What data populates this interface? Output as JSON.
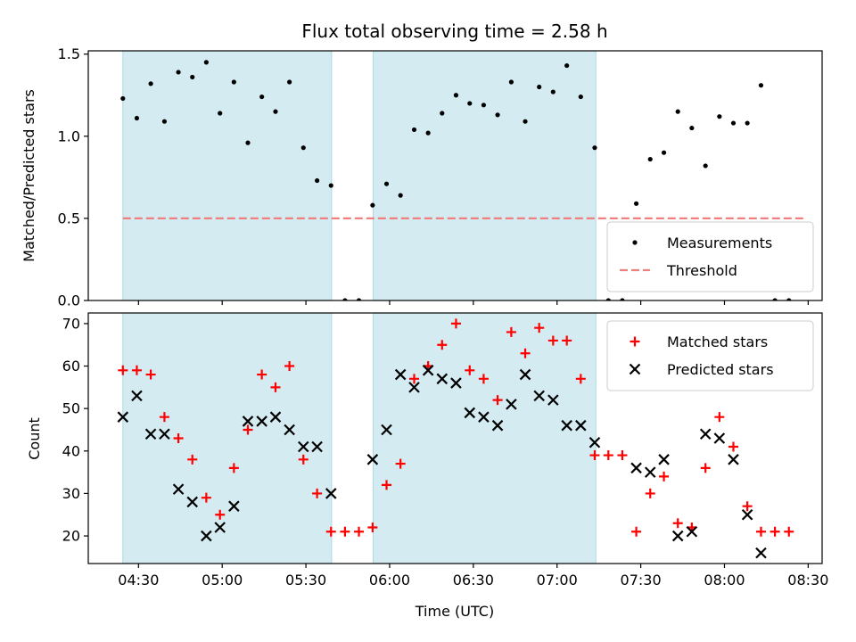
{
  "chart_data": {
    "title": "Flux total observing time = 2.58 h",
    "xlabel": "Time (UTC)",
    "x_unit": "minutes since 00:00 UTC",
    "x_range": [
      252,
      515
    ],
    "x_tick_values": [
      270,
      300,
      330,
      360,
      390,
      420,
      450,
      480,
      510
    ],
    "x_tick_labels": [
      "04:30",
      "05:00",
      "05:30",
      "06:00",
      "06:30",
      "07:00",
      "07:30",
      "08:00",
      "08:30"
    ],
    "shaded_intervals": [
      [
        264.4,
        339.2
      ],
      [
        354.1,
        433.9
      ]
    ],
    "shade_color": "#d3ebf1",
    "panels": [
      {
        "id": "ratio",
        "type": "scatter",
        "ylabel": "Matched/Predicted stars",
        "ylim": [
          0,
          1.52
        ],
        "y_tick_values": [
          0,
          0.5,
          1.0,
          1.5
        ],
        "y_tick_labels": [
          "0.0",
          "0.5",
          "1.0",
          "1.5"
        ],
        "legend_position": "lower-right",
        "threshold": {
          "name": "Threshold",
          "value": 0.5,
          "x_range": [
            264.4,
            509.5
          ],
          "color": "#f08080"
        },
        "series": [
          {
            "name": "Measurements",
            "marker": "dot",
            "color": "#000000",
            "points": [
              [
                264.4,
                1.23
              ],
              [
                269.4,
                1.11
              ],
              [
                274.4,
                1.32
              ],
              [
                279.3,
                1.09
              ],
              [
                284.3,
                1.39
              ],
              [
                289.3,
                1.36
              ],
              [
                294.3,
                1.45
              ],
              [
                299.2,
                1.14
              ],
              [
                304.2,
                1.33
              ],
              [
                309.2,
                0.96
              ],
              [
                314.2,
                1.24
              ],
              [
                319.1,
                1.15
              ],
              [
                324.1,
                1.33
              ],
              [
                329.1,
                0.93
              ],
              [
                334.0,
                0.73
              ],
              [
                339.0,
                0.7
              ],
              [
                344.0,
                0.0
              ],
              [
                349.0,
                0.0
              ],
              [
                353.9,
                0.58
              ],
              [
                358.9,
                0.71
              ],
              [
                363.9,
                0.64
              ],
              [
                368.8,
                1.04
              ],
              [
                373.8,
                1.02
              ],
              [
                378.8,
                1.14
              ],
              [
                383.8,
                1.25
              ],
              [
                388.7,
                1.2
              ],
              [
                393.7,
                1.19
              ],
              [
                398.7,
                1.13
              ],
              [
                403.6,
                1.33
              ],
              [
                408.6,
                1.09
              ],
              [
                413.6,
                1.3
              ],
              [
                418.6,
                1.27
              ],
              [
                423.5,
                1.43
              ],
              [
                428.5,
                1.24
              ],
              [
                433.5,
                0.93
              ],
              [
                438.4,
                0.0
              ],
              [
                443.4,
                0.0
              ],
              [
                448.4,
                0.59
              ],
              [
                453.4,
                0.86
              ],
              [
                458.3,
                0.9
              ],
              [
                463.3,
                1.15
              ],
              [
                468.3,
                1.05
              ],
              [
                473.2,
                0.82
              ],
              [
                478.2,
                1.12
              ],
              [
                483.2,
                1.08
              ],
              [
                488.2,
                1.08
              ],
              [
                493.1,
                1.31
              ],
              [
                498.1,
                0.0
              ],
              [
                503.1,
                0.0
              ]
            ]
          }
        ]
      },
      {
        "id": "count",
        "type": "scatter",
        "ylabel": "Count",
        "ylim": [
          13.5,
          72.5
        ],
        "y_tick_values": [
          20,
          30,
          40,
          50,
          60,
          70
        ],
        "y_tick_labels": [
          "20",
          "30",
          "40",
          "50",
          "60",
          "70"
        ],
        "legend_position": "upper-right",
        "series": [
          {
            "name": "Matched stars",
            "marker": "plus",
            "color": "#ff0000",
            "points": [
              [
                264.4,
                59
              ],
              [
                269.4,
                59
              ],
              [
                274.4,
                58
              ],
              [
                279.3,
                48
              ],
              [
                284.3,
                43
              ],
              [
                289.3,
                38
              ],
              [
                294.3,
                29
              ],
              [
                299.2,
                25
              ],
              [
                304.2,
                36
              ],
              [
                309.2,
                45
              ],
              [
                314.2,
                58
              ],
              [
                319.1,
                55
              ],
              [
                324.1,
                60
              ],
              [
                329.1,
                38
              ],
              [
                334.0,
                30
              ],
              [
                339.0,
                21
              ],
              [
                344.0,
                21
              ],
              [
                349.0,
                21
              ],
              [
                353.9,
                22
              ],
              [
                358.9,
                32
              ],
              [
                363.9,
                37
              ],
              [
                368.8,
                57
              ],
              [
                373.8,
                60
              ],
              [
                378.8,
                65
              ],
              [
                383.8,
                70
              ],
              [
                388.7,
                59
              ],
              [
                393.7,
                57
              ],
              [
                398.7,
                52
              ],
              [
                403.6,
                68
              ],
              [
                408.6,
                63
              ],
              [
                413.6,
                69
              ],
              [
                418.6,
                66
              ],
              [
                423.5,
                66
              ],
              [
                428.5,
                57
              ],
              [
                433.5,
                39
              ],
              [
                438.4,
                39
              ],
              [
                443.4,
                39
              ],
              [
                448.4,
                21
              ],
              [
                453.4,
                30
              ],
              [
                458.3,
                34
              ],
              [
                463.3,
                23
              ],
              [
                468.3,
                22
              ],
              [
                473.2,
                36
              ],
              [
                478.2,
                48
              ],
              [
                483.2,
                41
              ],
              [
                488.2,
                27
              ],
              [
                493.1,
                21
              ],
              [
                498.1,
                21
              ],
              [
                503.1,
                21
              ]
            ]
          },
          {
            "name": "Predicted stars",
            "marker": "x",
            "color": "#000000",
            "points": [
              [
                264.4,
                48
              ],
              [
                269.4,
                53
              ],
              [
                274.4,
                44
              ],
              [
                279.3,
                44
              ],
              [
                284.3,
                31
              ],
              [
                289.3,
                28
              ],
              [
                294.3,
                20
              ],
              [
                299.2,
                22
              ],
              [
                304.2,
                27
              ],
              [
                309.2,
                47
              ],
              [
                314.2,
                47
              ],
              [
                319.1,
                48
              ],
              [
                324.1,
                45
              ],
              [
                329.1,
                41
              ],
              [
                334.0,
                41
              ],
              [
                339.0,
                30
              ],
              [
                353.9,
                38
              ],
              [
                358.9,
                45
              ],
              [
                363.9,
                58
              ],
              [
                368.8,
                55
              ],
              [
                373.8,
                59
              ],
              [
                378.8,
                57
              ],
              [
                383.8,
                56
              ],
              [
                388.7,
                49
              ],
              [
                393.7,
                48
              ],
              [
                398.7,
                46
              ],
              [
                403.6,
                51
              ],
              [
                408.6,
                58
              ],
              [
                413.6,
                53
              ],
              [
                418.6,
                52
              ],
              [
                423.5,
                46
              ],
              [
                428.5,
                46
              ],
              [
                433.5,
                42
              ],
              [
                448.4,
                36
              ],
              [
                453.4,
                35
              ],
              [
                458.3,
                38
              ],
              [
                463.3,
                20
              ],
              [
                468.3,
                21
              ],
              [
                473.2,
                44
              ],
              [
                478.2,
                43
              ],
              [
                483.2,
                38
              ],
              [
                488.2,
                25
              ],
              [
                493.1,
                16
              ]
            ]
          }
        ]
      }
    ]
  }
}
